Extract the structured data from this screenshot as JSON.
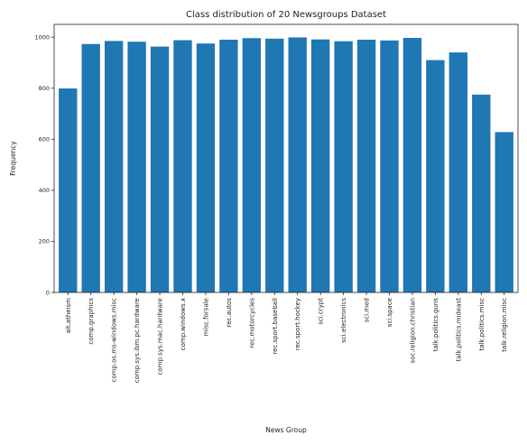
{
  "chart_data": {
    "type": "bar",
    "title": "Class distribution of 20 Newsgroups Dataset",
    "xlabel": "News Group",
    "ylabel": "Frequency",
    "ylim": [
      0,
      1050
    ],
    "yticks": [
      "0",
      "200",
      "400",
      "600",
      "800",
      "1000"
    ],
    "grid": false,
    "bar_color": "#1f77b4",
    "categories": [
      "alt.atheism",
      "comp.graphics",
      "comp.os.ms-windows.misc",
      "comp.sys.ibm.pc.hardware",
      "comp.sys.mac.hardware",
      "comp.windows.x",
      "misc.forsale",
      "rec.autos",
      "rec.motorcycles",
      "rec.sport.baseball",
      "rec.sport.hockey",
      "sci.crypt",
      "sci.electronics",
      "sci.med",
      "sci.space",
      "soc.religion.christian",
      "talk.politics.guns",
      "talk.politics.mideast",
      "talk.politics.misc",
      "talk.religion.misc"
    ],
    "values": [
      799,
      973,
      985,
      982,
      963,
      988,
      975,
      990,
      996,
      994,
      999,
      991,
      984,
      990,
      987,
      997,
      910,
      940,
      775,
      628
    ]
  }
}
